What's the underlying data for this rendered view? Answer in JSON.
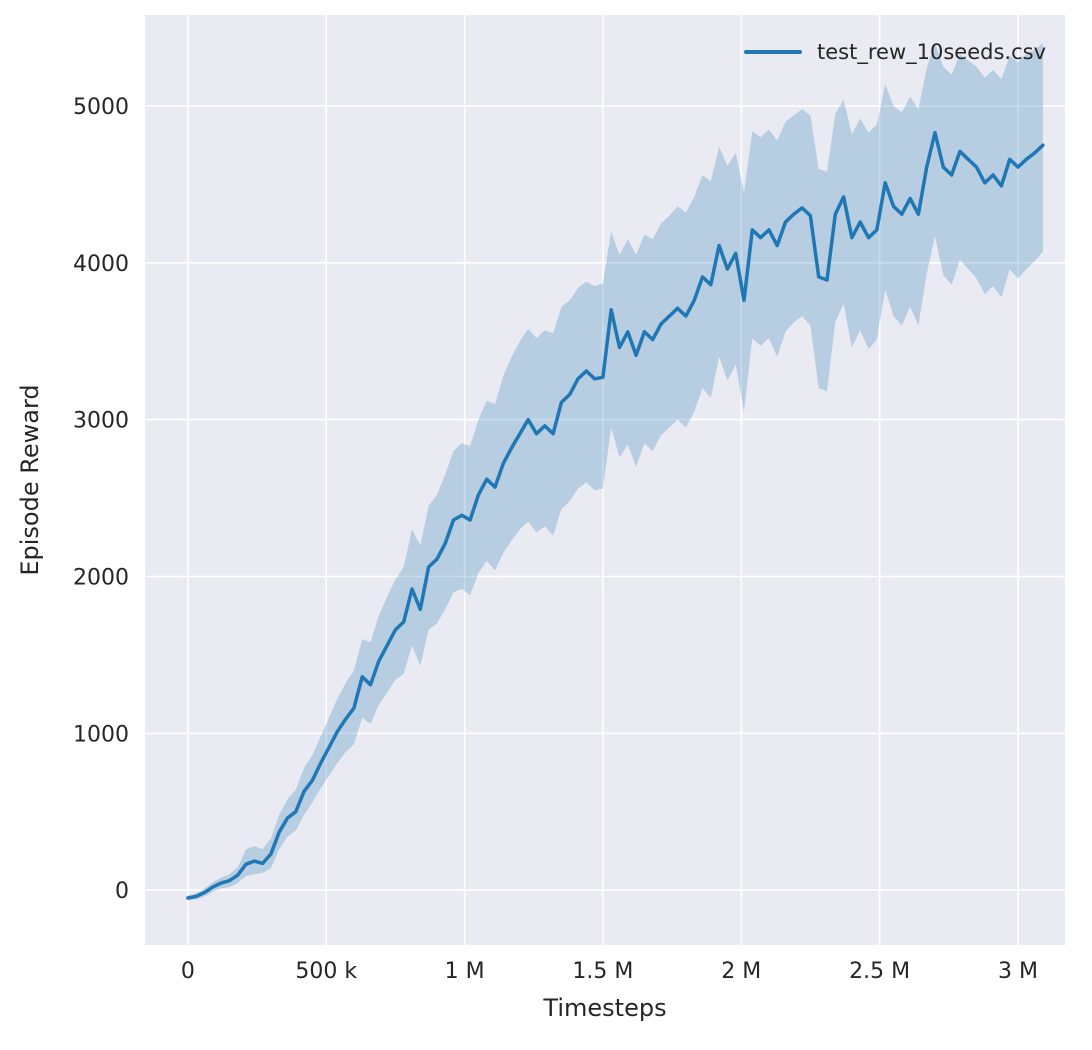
{
  "chart_data": {
    "type": "line",
    "title": "",
    "xlabel": "Timesteps",
    "ylabel": "Episode Reward",
    "grid": true,
    "plot_background": "#eaeaf2",
    "grid_color": "#ffffff",
    "tick_color": "#262626",
    "legend": {
      "position": "upper right",
      "entries": [
        "test_rew_10seeds.csv"
      ]
    },
    "xlim": [
      -155000,
      3170000
    ],
    "ylim": [
      -350,
      5580
    ],
    "x_ticks": {
      "values": [
        0,
        500000,
        1000000,
        1500000,
        2000000,
        2500000,
        3000000
      ],
      "labels": [
        "0",
        "500 k",
        "1 M",
        "1.5 M",
        "2 M",
        "2.5 M",
        "3 M"
      ]
    },
    "y_ticks": {
      "values": [
        0,
        1000,
        2000,
        3000,
        4000,
        5000
      ],
      "labels": [
        "0",
        "1000",
        "2000",
        "3000",
        "4000",
        "5000"
      ]
    },
    "series": [
      {
        "name": "test_rew_10seeds.csv",
        "color": "#1f77b4",
        "band_opacity": 0.25,
        "x_thousands": [
          0,
          30,
          60,
          90,
          120,
          150,
          180,
          210,
          240,
          270,
          300,
          330,
          360,
          390,
          420,
          450,
          480,
          510,
          540,
          570,
          600,
          630,
          660,
          690,
          720,
          750,
          780,
          810,
          840,
          870,
          900,
          930,
          960,
          990,
          1020,
          1050,
          1080,
          1110,
          1140,
          1170,
          1200,
          1230,
          1260,
          1290,
          1320,
          1350,
          1380,
          1410,
          1440,
          1470,
          1500,
          1530,
          1560,
          1590,
          1620,
          1650,
          1680,
          1710,
          1740,
          1770,
          1800,
          1830,
          1860,
          1890,
          1920,
          1950,
          1980,
          2010,
          2040,
          2070,
          2100,
          2130,
          2160,
          2190,
          2220,
          2250,
          2280,
          2310,
          2340,
          2370,
          2400,
          2430,
          2460,
          2490,
          2520,
          2550,
          2580,
          2610,
          2640,
          2670,
          2700,
          2730,
          2760,
          2790,
          2820,
          2850,
          2880,
          2910,
          2940,
          2970,
          3000,
          3030,
          3060,
          3090
        ],
        "mean": [
          -50,
          -40,
          -15,
          20,
          45,
          60,
          95,
          165,
          185,
          170,
          230,
          370,
          460,
          500,
          630,
          700,
          810,
          910,
          1010,
          1090,
          1160,
          1360,
          1310,
          1460,
          1560,
          1660,
          1710,
          1920,
          1790,
          2060,
          2110,
          2210,
          2360,
          2390,
          2360,
          2520,
          2620,
          2570,
          2720,
          2820,
          2910,
          3000,
          2910,
          2960,
          2910,
          3110,
          3160,
          3260,
          3310,
          3260,
          3270,
          3700,
          3460,
          3560,
          3410,
          3560,
          3510,
          3610,
          3660,
          3710,
          3660,
          3760,
          3910,
          3860,
          4110,
          3960,
          4060,
          3760,
          4210,
          4160,
          4210,
          4110,
          4260,
          4310,
          4350,
          4300,
          3910,
          3890,
          4310,
          4420,
          4160,
          4260,
          4160,
          4210,
          4510,
          4360,
          4310,
          4410,
          4310,
          4610,
          4830,
          4610,
          4560,
          4710,
          4660,
          4610,
          4510,
          4560,
          4490,
          4660,
          4610,
          4660,
          4700,
          4750
        ],
        "band_low": [
          -65,
          -60,
          -40,
          -10,
          10,
          20,
          45,
          90,
          100,
          110,
          140,
          260,
          340,
          380,
          480,
          560,
          650,
          730,
          810,
          880,
          930,
          1100,
          1060,
          1180,
          1260,
          1340,
          1380,
          1560,
          1430,
          1660,
          1700,
          1790,
          1900,
          1920,
          1880,
          2020,
          2100,
          2040,
          2150,
          2230,
          2300,
          2350,
          2280,
          2320,
          2260,
          2430,
          2480,
          2560,
          2600,
          2550,
          2560,
          2950,
          2760,
          2840,
          2700,
          2850,
          2800,
          2900,
          2950,
          3000,
          2950,
          3050,
          3200,
          3140,
          3400,
          3250,
          3350,
          3050,
          3520,
          3470,
          3520,
          3400,
          3560,
          3620,
          3660,
          3600,
          3200,
          3180,
          3620,
          3740,
          3460,
          3570,
          3450,
          3510,
          3830,
          3660,
          3600,
          3720,
          3600,
          3930,
          4170,
          3920,
          3860,
          4020,
          3960,
          3900,
          3800,
          3850,
          3780,
          3960,
          3900,
          3960,
          4010,
          4070
        ],
        "band_high": [
          -35,
          -20,
          10,
          50,
          80,
          100,
          145,
          260,
          280,
          260,
          330,
          480,
          580,
          640,
          780,
          860,
          980,
          1100,
          1220,
          1320,
          1400,
          1600,
          1580,
          1750,
          1870,
          1980,
          2060,
          2300,
          2200,
          2450,
          2520,
          2650,
          2800,
          2850,
          2830,
          3000,
          3120,
          3100,
          3280,
          3400,
          3500,
          3580,
          3520,
          3570,
          3550,
          3720,
          3760,
          3840,
          3880,
          3850,
          3870,
          4200,
          4050,
          4150,
          4050,
          4180,
          4150,
          4250,
          4300,
          4360,
          4320,
          4420,
          4560,
          4520,
          4740,
          4620,
          4700,
          4450,
          4840,
          4800,
          4850,
          4780,
          4900,
          4940,
          4980,
          4940,
          4600,
          4580,
          4950,
          5040,
          4820,
          4920,
          4830,
          4880,
          5140,
          5000,
          4960,
          5060,
          4980,
          5240,
          5400,
          5250,
          5200,
          5330,
          5290,
          5250,
          5180,
          5230,
          5170,
          5320,
          5280,
          5330,
          5360,
          5400
        ]
      }
    ]
  }
}
